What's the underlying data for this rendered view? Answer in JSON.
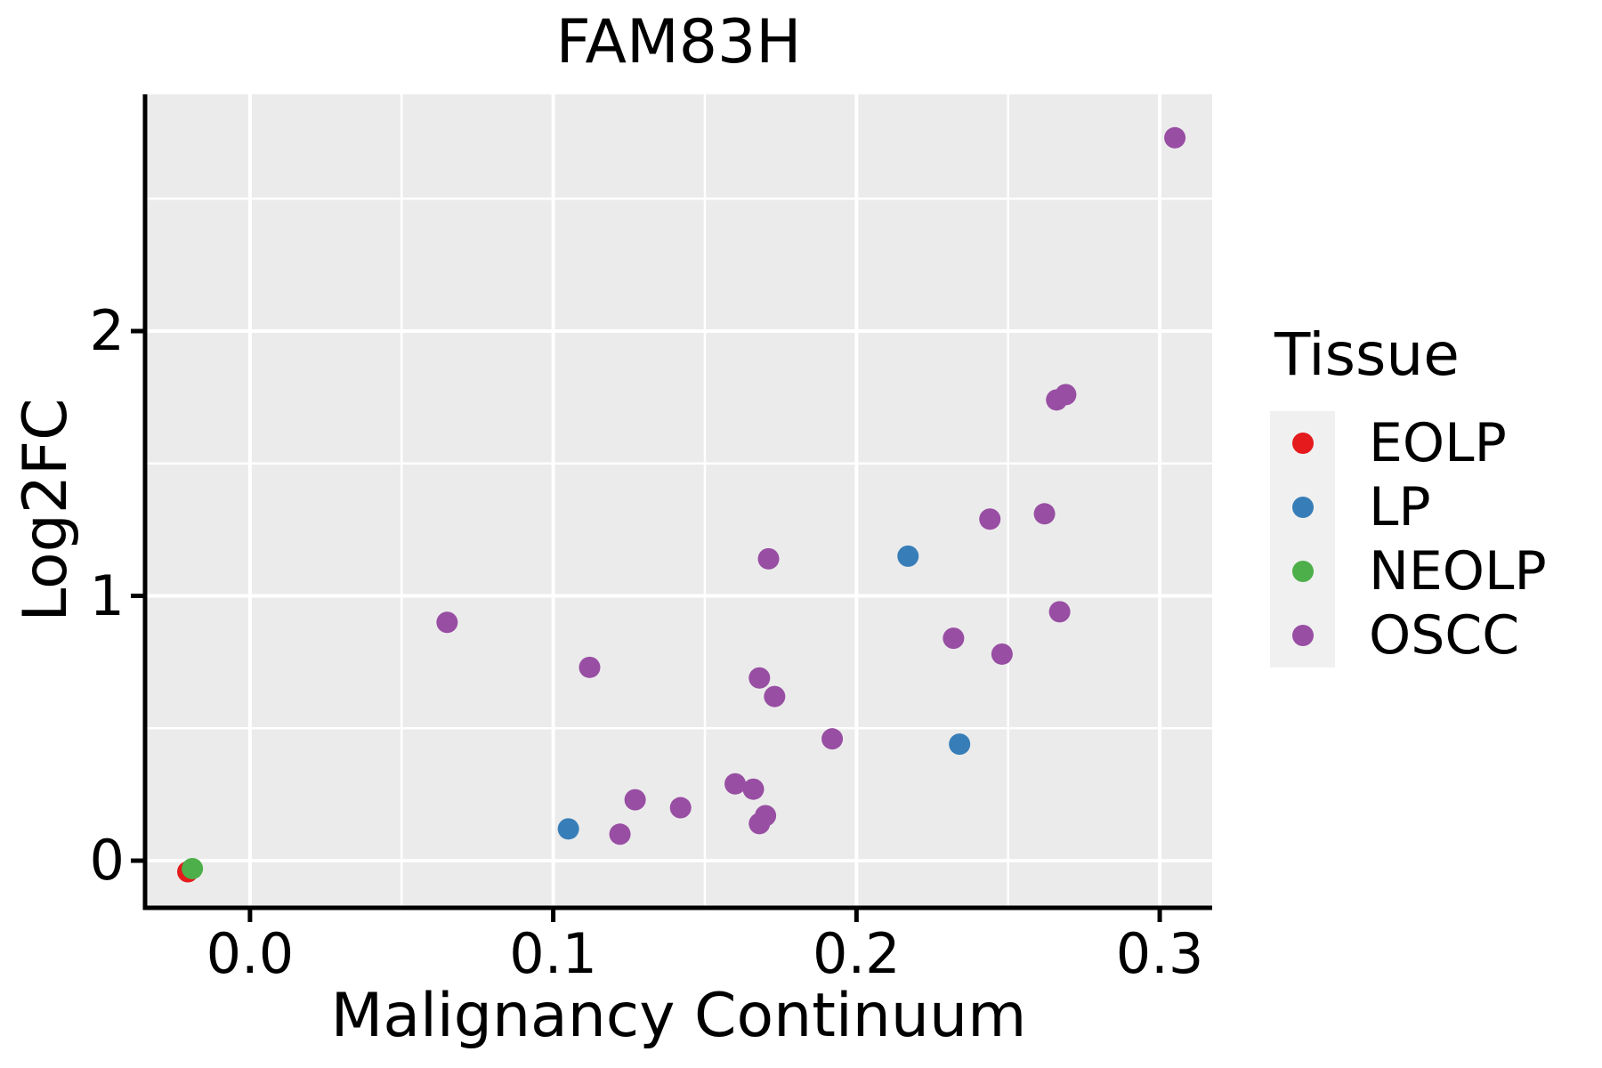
{
  "chart_data": {
    "type": "scatter",
    "title": "FAM83H",
    "xlabel": "Malignancy Continuum",
    "ylabel": "Log2FC",
    "legend_title": "Tissue",
    "xlim": [
      -0.0346,
      0.3173
    ],
    "ylim": [
      -0.178,
      2.894
    ],
    "x_ticks": [
      0.0,
      0.1,
      0.2,
      0.3
    ],
    "x_tick_labels": [
      "0.0",
      "0.1",
      "0.2",
      "0.3"
    ],
    "y_ticks": [
      0,
      1,
      2
    ],
    "y_tick_labels": [
      "0",
      "1",
      "2"
    ],
    "x_minor_ticks": [
      0.05,
      0.15,
      0.25
    ],
    "y_minor_ticks": [
      0.5,
      1.5,
      2.5
    ],
    "grid": true,
    "panel_color": "#EBEBEB",
    "grid_color": "#FFFFFF",
    "legend_key_color": "#F0F0F0",
    "legend_position": "right",
    "point_radius_px": 12,
    "series": [
      {
        "name": "EOLP",
        "color": "#E41A1C",
        "points": [
          [
            -0.0205,
            -0.042
          ]
        ]
      },
      {
        "name": "LP",
        "color": "#377EB8",
        "points": [
          [
            0.105,
            0.12
          ],
          [
            0.217,
            1.15
          ],
          [
            0.234,
            0.44
          ]
        ]
      },
      {
        "name": "NEOLP",
        "color": "#4DAF4A",
        "points": [
          [
            -0.019,
            -0.03
          ]
        ]
      },
      {
        "name": "OSCC",
        "color": "#984EA3",
        "points": [
          [
            0.065,
            0.9
          ],
          [
            0.112,
            0.73
          ],
          [
            0.122,
            0.1
          ],
          [
            0.127,
            0.23
          ],
          [
            0.142,
            0.2
          ],
          [
            0.16,
            0.29
          ],
          [
            0.166,
            0.27
          ],
          [
            0.168,
            0.14
          ],
          [
            0.17,
            0.17
          ],
          [
            0.168,
            0.69
          ],
          [
            0.173,
            0.62
          ],
          [
            0.171,
            1.14
          ],
          [
            0.192,
            0.46
          ],
          [
            0.232,
            0.84
          ],
          [
            0.244,
            1.29
          ],
          [
            0.248,
            0.78
          ],
          [
            0.262,
            1.31
          ],
          [
            0.267,
            0.94
          ],
          [
            0.266,
            1.74
          ],
          [
            0.269,
            1.76
          ],
          [
            0.305,
            2.73
          ]
        ]
      }
    ]
  }
}
